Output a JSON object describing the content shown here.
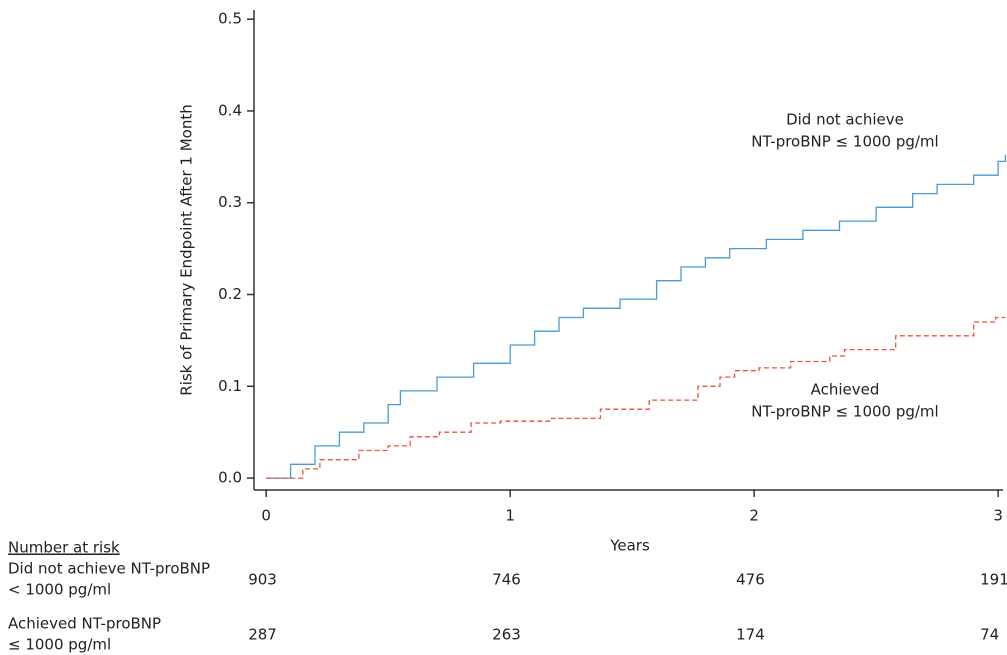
{
  "chart_data": {
    "type": "line",
    "step": true,
    "ylabel": "Risk of Primary Endpoint After 1 Month",
    "xlabel": "Years",
    "xlim": [
      -0.05,
      3.02
    ],
    "xticks": [
      0,
      1,
      2,
      3
    ],
    "ylim": [
      -0.013,
      0.51
    ],
    "yticks": [
      {
        "value": 0,
        "label": "0.0"
      },
      0.1,
      0.2,
      0.3,
      0.4,
      0.5
    ],
    "series": [
      {
        "name": [
          "Did not achieve",
          "NT-proBNP ≤ 1000 pg/ml"
        ],
        "color": "#4a9bd4",
        "linestyle": "solid",
        "x": [
          0,
          0.1,
          0.1,
          0.2,
          0.2,
          0.3,
          0.3,
          0.4,
          0.4,
          0.5,
          0.5,
          0.55,
          0.55,
          0.7,
          0.7,
          0.85,
          0.85,
          1.0,
          1.0,
          1.1,
          1.1,
          1.2,
          1.2,
          1.3,
          1.3,
          1.45,
          1.45,
          1.6,
          1.6,
          1.7,
          1.7,
          1.8,
          1.8,
          1.9,
          1.9,
          2.05,
          2.05,
          2.2,
          2.2,
          2.35,
          2.35,
          2.5,
          2.5,
          2.65,
          2.65,
          2.75,
          2.75,
          2.9,
          2.9,
          3.0,
          3.0,
          3.03,
          3.03
        ],
        "values": [
          0,
          0,
          0.015,
          0.015,
          0.035,
          0.035,
          0.05,
          0.05,
          0.06,
          0.06,
          0.08,
          0.08,
          0.095,
          0.095,
          0.11,
          0.11,
          0.125,
          0.125,
          0.145,
          0.145,
          0.16,
          0.16,
          0.175,
          0.175,
          0.185,
          0.185,
          0.195,
          0.195,
          0.215,
          0.215,
          0.23,
          0.23,
          0.24,
          0.24,
          0.25,
          0.25,
          0.26,
          0.26,
          0.27,
          0.27,
          0.28,
          0.28,
          0.295,
          0.295,
          0.31,
          0.31,
          0.32,
          0.32,
          0.33,
          0.33,
          0.345,
          0.345,
          0.352
        ]
      },
      {
        "name": [
          "Achieved",
          "NT-proBNP ≤ 1000 pg/ml"
        ],
        "color": "#e8553a",
        "linestyle": "dashed",
        "x": [
          0,
          0.15,
          0.15,
          0.22,
          0.22,
          0.38,
          0.38,
          0.5,
          0.5,
          0.59,
          0.59,
          0.71,
          0.71,
          0.84,
          0.84,
          0.96,
          0.96,
          1.16,
          1.16,
          1.37,
          1.37,
          1.57,
          1.57,
          1.77,
          1.77,
          1.86,
          1.86,
          1.92,
          1.92,
          2.02,
          2.02,
          2.15,
          2.15,
          2.31,
          2.31,
          2.37,
          2.37,
          2.58,
          2.58,
          2.9,
          2.9,
          2.99,
          2.99,
          3.03,
          3.03
        ],
        "values": [
          0,
          0,
          0.01,
          0.01,
          0.02,
          0.02,
          0.03,
          0.03,
          0.035,
          0.035,
          0.045,
          0.045,
          0.05,
          0.05,
          0.06,
          0.06,
          0.062,
          0.062,
          0.065,
          0.065,
          0.075,
          0.075,
          0.085,
          0.085,
          0.1,
          0.1,
          0.11,
          0.11,
          0.117,
          0.117,
          0.12,
          0.12,
          0.127,
          0.127,
          0.133,
          0.133,
          0.14,
          0.14,
          0.155,
          0.155,
          0.17,
          0.17,
          0.175,
          0.175,
          0.175
        ]
      }
    ],
    "risk_table": {
      "title": "Number at risk",
      "rows": [
        {
          "label": [
            "Did not achieve NT-proBNP",
            "< 1000 pg/ml"
          ],
          "values": [
            903,
            746,
            476,
            191
          ]
        },
        {
          "label": [
            "Achieved NT-proBNP",
            "≤ 1000 pg/ml"
          ],
          "values": [
            287,
            263,
            174,
            74
          ]
        }
      ]
    }
  }
}
